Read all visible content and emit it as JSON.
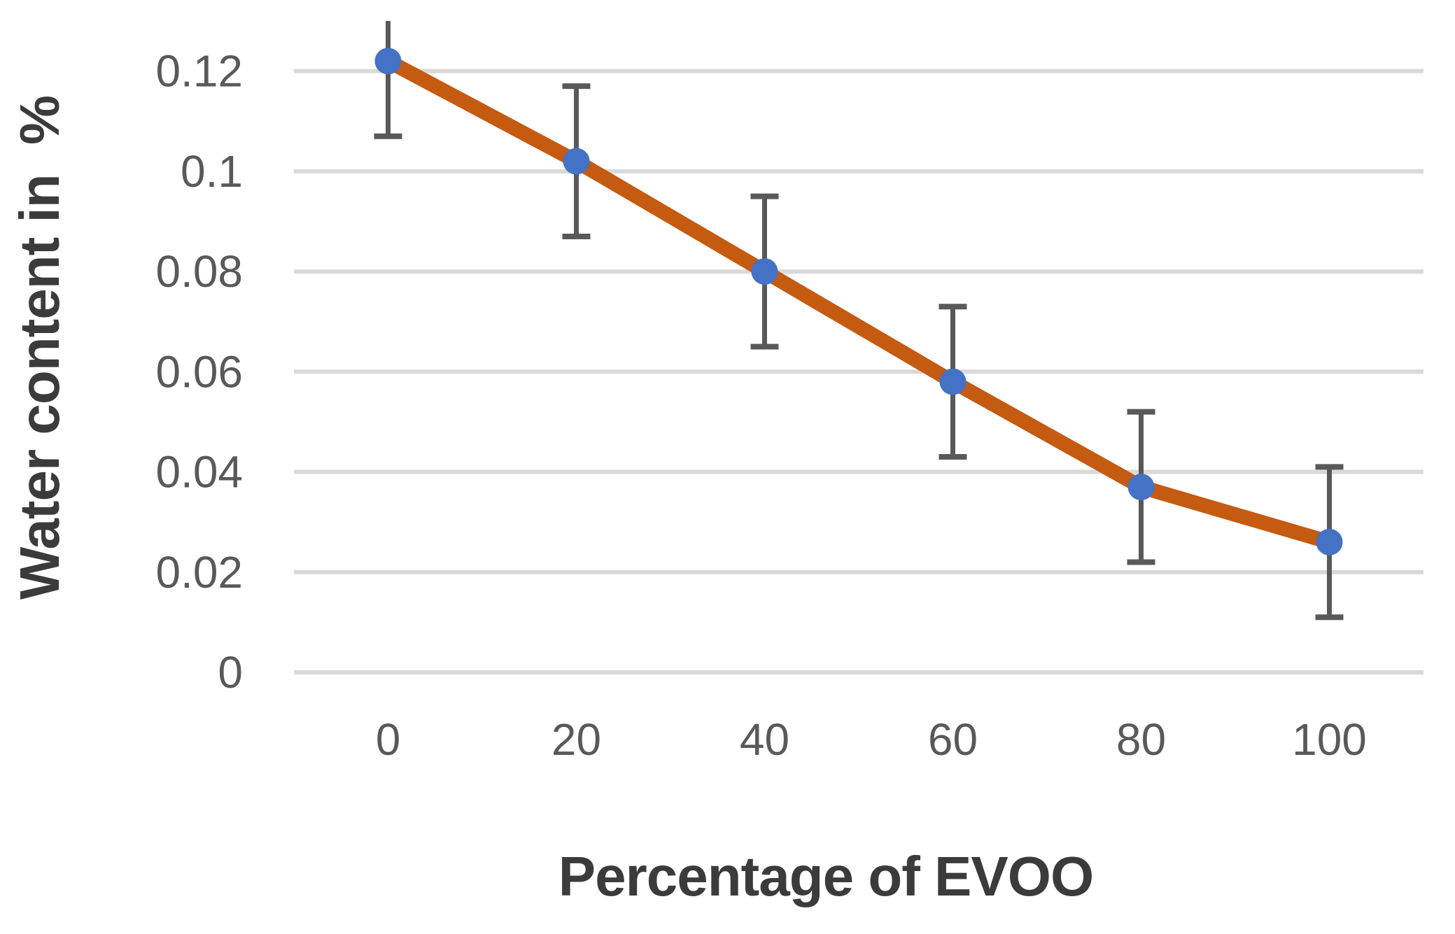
{
  "chart_data": {
    "type": "line",
    "title": "",
    "xlabel": "Percentage of EVOO",
    "ylabel": "Water content in  %",
    "categories": [
      0,
      20,
      40,
      60,
      80,
      100
    ],
    "x_tick_labels": [
      "0",
      "20",
      "40",
      "60",
      "80",
      "100"
    ],
    "series": [
      {
        "name": "Water content",
        "values": [
          0.122,
          0.102,
          0.08,
          0.058,
          0.037,
          0.026
        ],
        "error_bars_plus": [
          0.015,
          0.015,
          0.015,
          0.015,
          0.015,
          0.015
        ],
        "error_bars_minus": [
          0.015,
          0.015,
          0.015,
          0.015,
          0.015,
          0.015
        ]
      }
    ],
    "y_ticks": [
      0,
      0.02,
      0.04,
      0.06,
      0.08,
      0.1,
      0.12
    ],
    "y_tick_labels": [
      "0",
      "0.02",
      "0.04",
      "0.06",
      "0.08",
      "0.1",
      "0.12"
    ],
    "ylim": [
      0,
      0.13
    ],
    "grid": "horizontal",
    "legend_position": "none",
    "marker_shape": "circle",
    "colors": {
      "line": "#C55A11",
      "marker": "#4472C4",
      "error_bar": "#595959",
      "gridline": "#D9D9D9",
      "tick_label": "#595959",
      "axis_title": "#3B3B3B",
      "background": "#FFFFFF"
    }
  }
}
